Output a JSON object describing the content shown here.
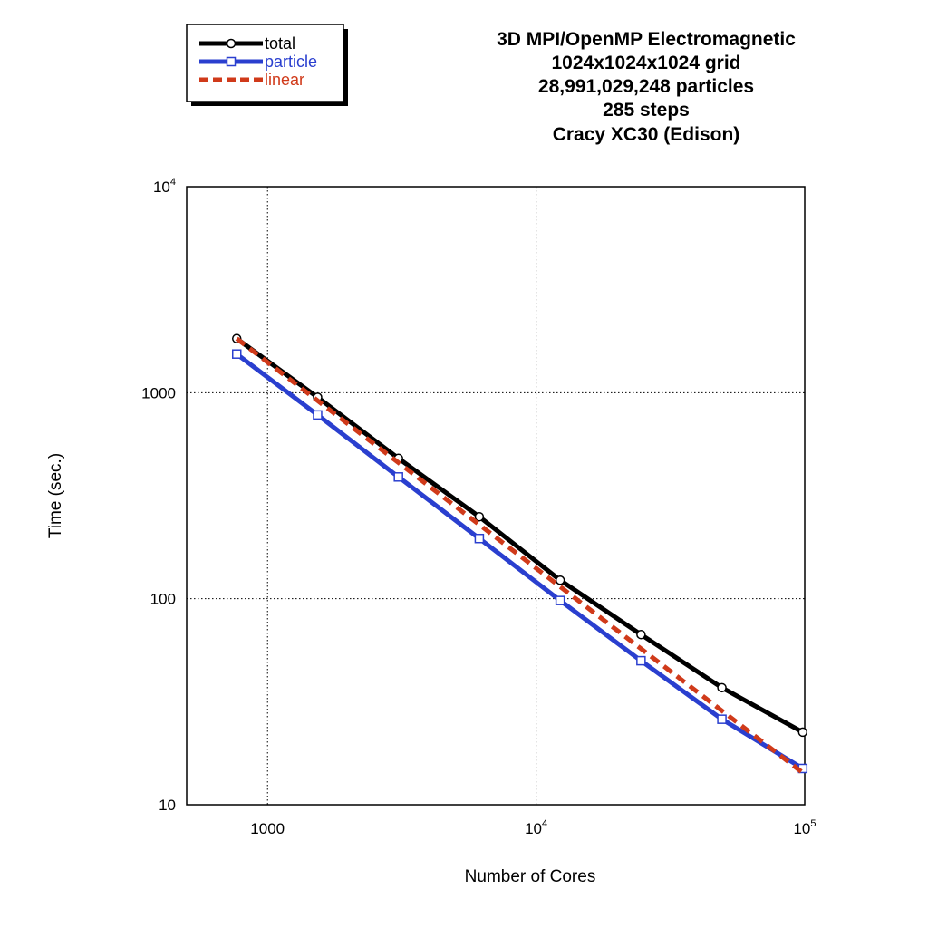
{
  "chart_data": {
    "type": "line",
    "title_lines": [
      "3D MPI/OpenMP Electromagnetic",
      "1024x1024x1024 grid",
      "28,991,029,248 particles",
      "285 steps",
      "Cracy XC30 (Edison)"
    ],
    "xlabel": "Number of Cores",
    "ylabel": "Time (sec.)",
    "xscale": "log",
    "yscale": "log",
    "xlim": [
      500,
      100000
    ],
    "ylim": [
      10,
      10000
    ],
    "grid": true,
    "legend_position": "top-left",
    "x_ticks": [
      {
        "value": 1000,
        "base": "1000",
        "exp": ""
      },
      {
        "value": 10000,
        "base": "10",
        "exp": "4"
      },
      {
        "value": 100000,
        "base": "10",
        "exp": "5"
      }
    ],
    "y_ticks": [
      {
        "value": 10,
        "base": "10",
        "exp": ""
      },
      {
        "value": 100,
        "base": "100",
        "exp": ""
      },
      {
        "value": 1000,
        "base": "1000",
        "exp": ""
      },
      {
        "value": 10000,
        "base": "10",
        "exp": "4"
      }
    ],
    "series": [
      {
        "name": "total",
        "color": "#000000",
        "marker": "circle",
        "dash": "solid",
        "x": [
          768,
          1536,
          3072,
          6144,
          12288,
          24576,
          49152,
          98304
        ],
        "y": [
          1830,
          950,
          480,
          250,
          123,
          67,
          37,
          22.5
        ]
      },
      {
        "name": "particle",
        "color": "#2a3fcf",
        "marker": "square",
        "dash": "solid",
        "x": [
          768,
          1536,
          3072,
          6144,
          12288,
          24576,
          49152,
          98304
        ],
        "y": [
          1540,
          780,
          390,
          196,
          98,
          50,
          26,
          15
        ]
      },
      {
        "name": "linear",
        "color": "#d03a1a",
        "marker": "none",
        "dash": "dashed",
        "x": [
          768,
          98304
        ],
        "y": [
          1830,
          14.3
        ]
      }
    ]
  }
}
